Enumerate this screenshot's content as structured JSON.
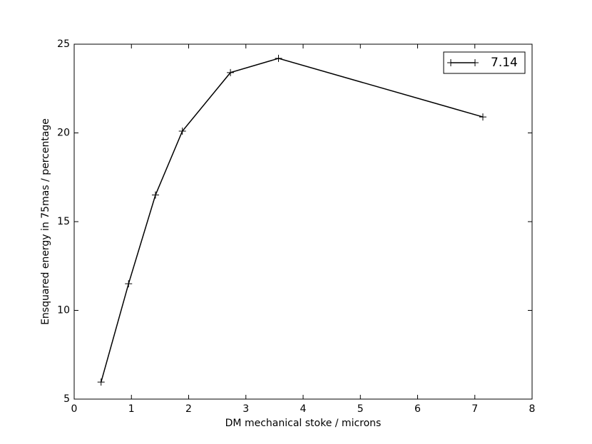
{
  "chart_data": {
    "type": "line",
    "xlabel": "DM mechanical stoke / microns",
    "ylabel": "Ensquared energy in 75mas / percentage",
    "x": [
      0.47,
      0.95,
      1.42,
      1.89,
      2.73,
      3.57,
      7.14
    ],
    "series": [
      {
        "name": "7.14",
        "color": "#000000",
        "marker": "+",
        "values": [
          5.96,
          11.5,
          16.5,
          20.1,
          23.4,
          24.2,
          20.9
        ]
      }
    ],
    "xlim": [
      0,
      8
    ],
    "xticks": [
      0,
      1,
      2,
      3,
      4,
      5,
      6,
      7,
      8
    ],
    "ylim": [
      5,
      25
    ],
    "yticks": [
      5,
      10,
      15,
      20,
      25
    ],
    "grid": false,
    "legend": "upper right"
  }
}
